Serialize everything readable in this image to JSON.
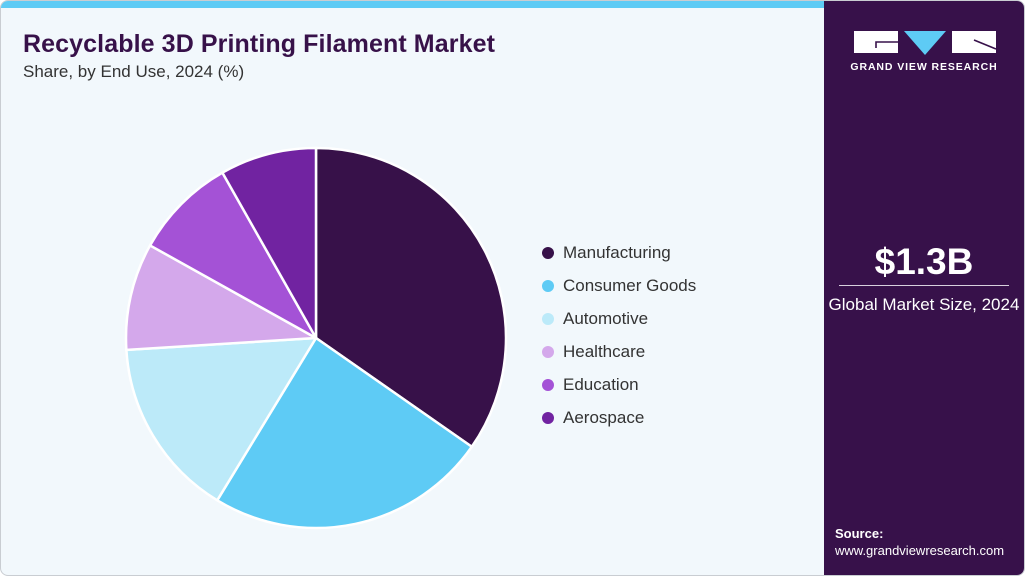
{
  "header": {
    "title": "Recyclable 3D Printing Filament Market",
    "subtitle": "Share, by End Use, 2024 (%)"
  },
  "colors": {
    "background": "#f2f8fc",
    "accent_bar": "#5ecbf5",
    "side_panel": "#37114a",
    "title": "#371149"
  },
  "legend": {
    "items": [
      {
        "label": "Manufacturing",
        "color": "#371149"
      },
      {
        "label": "Consumer Goods",
        "color": "#5ecbf5"
      },
      {
        "label": "Automotive",
        "color": "#bceaf9"
      },
      {
        "label": "Healthcare",
        "color": "#d4a8eb"
      },
      {
        "label": "Education",
        "color": "#a452d6"
      },
      {
        "label": "Aerospace",
        "color": "#7123a1"
      }
    ]
  },
  "side_panel": {
    "logo_icon": "grand-view-research-logo",
    "brand": "GRAND VIEW RESEARCH",
    "market_value": "$1.3B",
    "market_value_label": "Global Market Size, 2024",
    "source_label": "Source:",
    "source_url": "www.grandviewresearch.com"
  },
  "chart_data": {
    "type": "pie",
    "title": "Recyclable 3D Printing Filament Market",
    "subtitle": "Share, by End Use, 2024 (%)",
    "categories": [
      "Manufacturing",
      "Consumer Goods",
      "Automotive",
      "Healthcare",
      "Education",
      "Aerospace"
    ],
    "values": [
      34.7,
      24.0,
      15.3,
      9.1,
      8.7,
      8.2
    ],
    "colors": [
      "#371149",
      "#5ecbf5",
      "#bceaf9",
      "#d4a8eb",
      "#a452d6",
      "#7123a1"
    ],
    "start_angle": "12 o'clock, clockwise",
    "legend_position": "right",
    "annotations": [
      "$1.3B Global Market Size, 2024"
    ]
  }
}
